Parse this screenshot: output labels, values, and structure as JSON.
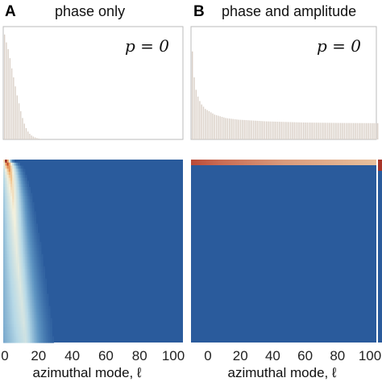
{
  "panels": [
    {
      "letter": "A",
      "title": "phase only",
      "p_label": "p = 0",
      "xlabel": "azimuthal mode, ℓ",
      "xticks": [
        "0",
        "20",
        "40",
        "60",
        "80",
        "100"
      ]
    },
    {
      "letter": "B",
      "title": "phase and amplitude",
      "p_label": "p = 0",
      "xlabel": "azimuthal mode, ℓ",
      "xticks": [
        "0",
        "20",
        "40",
        "60",
        "80",
        "100"
      ]
    }
  ],
  "chart_data": [
    {
      "type": "bar",
      "panel": "A",
      "title": "phase only",
      "annotation": "p = 0",
      "x": [
        0,
        1,
        2,
        3,
        4,
        5,
        6,
        7,
        8,
        9,
        10,
        11,
        12,
        13,
        14,
        15,
        16,
        17,
        18,
        19,
        20
      ],
      "values": [
        0.93,
        0.86,
        0.8,
        0.72,
        0.63,
        0.55,
        0.47,
        0.39,
        0.32,
        0.25,
        0.19,
        0.14,
        0.1,
        0.07,
        0.05,
        0.035,
        0.025,
        0.018,
        0.012,
        0.008,
        0.005
      ],
      "xlim": [
        0,
        100
      ],
      "ylim": [
        0,
        1
      ],
      "bar_color": "#d9cfc6"
    },
    {
      "type": "bar",
      "panel": "B",
      "title": "phase and amplitude",
      "annotation": "p = 0",
      "x": [
        0,
        1,
        2,
        3,
        4,
        5,
        6,
        7,
        8,
        9,
        10,
        12,
        14,
        16,
        18,
        20,
        25,
        30,
        35,
        40,
        50,
        60,
        70,
        80,
        90,
        100
      ],
      "values": [
        0.78,
        0.55,
        0.44,
        0.38,
        0.34,
        0.31,
        0.29,
        0.27,
        0.26,
        0.25,
        0.24,
        0.22,
        0.21,
        0.2,
        0.19,
        0.185,
        0.175,
        0.17,
        0.165,
        0.16,
        0.155,
        0.15,
        0.148,
        0.146,
        0.145,
        0.144
      ],
      "xlim": [
        0,
        100
      ],
      "ylim": [
        0,
        1
      ],
      "bar_color": "#d9cfc6"
    },
    {
      "type": "heatmap",
      "panel": "A",
      "xlabel": "azimuthal mode, ℓ",
      "xlim": [
        0,
        100
      ],
      "xticks": [
        0,
        20,
        40,
        60,
        80,
        100
      ],
      "colormap": [
        "#2a5b9c",
        "#5f95c2",
        "#b6d8e6",
        "#f3f1de",
        "#f0b26e",
        "#c8502e",
        "#8f1f1f"
      ],
      "background_color": "#2a5b9c",
      "description_profile": {
        "row_positions": [
          0,
          0.02,
          0.05,
          0.1,
          0.2,
          0.35,
          0.5,
          0.7,
          0.9,
          1.0
        ],
        "extent_l": [
          6,
          10,
          12,
          14,
          17,
          20,
          23,
          26,
          29,
          30
        ],
        "peak_l": [
          1,
          2,
          3,
          4,
          5,
          6,
          7,
          9,
          11,
          12
        ],
        "peak_value": [
          1.0,
          0.85,
          0.72,
          0.62,
          0.55,
          0.5,
          0.47,
          0.44,
          0.42,
          0.4
        ]
      }
    },
    {
      "type": "heatmap",
      "panel": "B",
      "xlabel": "azimuthal mode, ℓ",
      "xlim": [
        0,
        100
      ],
      "xticks": [
        0,
        20,
        40,
        60,
        80,
        100
      ],
      "colormap": [
        "#2a5b9c",
        "#5f95c2",
        "#b6d8e6",
        "#f3f1de",
        "#f0b26e",
        "#c8502e",
        "#8f1f1f"
      ],
      "background_color": "#2a5b9c",
      "top_band_color": "#c06048"
    }
  ]
}
